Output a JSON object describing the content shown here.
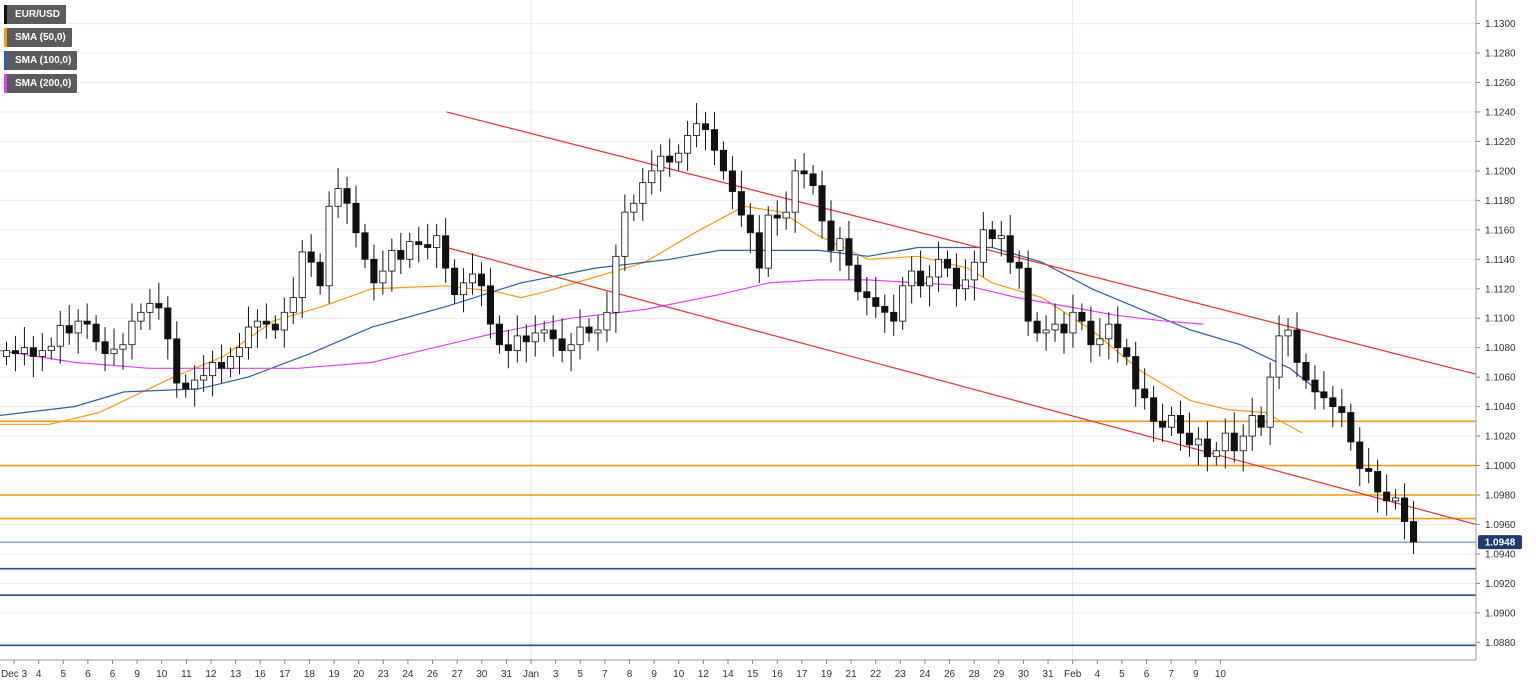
{
  "chart_data": {
    "type": "candlestick",
    "title": "",
    "symbol": "EUR/USD",
    "legend": [
      {
        "name": "EUR/USD",
        "color": "#111111"
      },
      {
        "name": "SMA (50,0)",
        "color": "#f39c12"
      },
      {
        "name": "SMA (100,0)",
        "color": "#2e5fa8"
      },
      {
        "name": "SMA (200,0)",
        "color": "#e040fb"
      }
    ],
    "legend_placement": "top-left",
    "grid": true,
    "ylim": [
      1.0868,
      1.1316
    ],
    "y_ticks": [
      "1.1300",
      "1.1280",
      "1.1260",
      "1.1240",
      "1.1220",
      "1.1200",
      "1.1180",
      "1.1160",
      "1.1140",
      "1.1120",
      "1.1100",
      "1.1080",
      "1.1060",
      "1.1040",
      "1.1020",
      "1.1000",
      "1.0980",
      "1.0960",
      "1.0940",
      "1.0920",
      "1.0900",
      "1.0880"
    ],
    "x_ticks": [
      "Dec 3",
      "4",
      "5",
      "6",
      "6",
      "9",
      "10",
      "11",
      "12",
      "13",
      "16",
      "17",
      "18",
      "19",
      "20",
      "23",
      "24",
      "26",
      "27",
      "30",
      "31",
      "Jan",
      "3",
      "5",
      "7",
      "8",
      "9",
      "10",
      "12",
      "14",
      "15",
      "16",
      "17",
      "19",
      "21",
      "22",
      "23",
      "24",
      "26",
      "28",
      "29",
      "30",
      "31",
      "Feb",
      "4",
      "5",
      "6",
      "7",
      "9",
      "10"
    ],
    "x_range": [
      0,
      119
    ],
    "current_price": "1.0948",
    "candles_close": [
      1.1078,
      1.1076,
      1.108,
      1.1074,
      1.1078,
      1.1081,
      1.1095,
      1.109,
      1.1098,
      1.1096,
      1.1084,
      1.1076,
      1.1079,
      1.1082,
      1.1098,
      1.1104,
      1.111,
      1.1107,
      1.1086,
      1.1056,
      1.1052,
      1.1058,
      1.1061,
      1.107,
      1.1066,
      1.1074,
      1.108,
      1.1094,
      1.1098,
      1.1096,
      1.1092,
      1.1104,
      1.1114,
      1.1145,
      1.1138,
      1.1122,
      1.1176,
      1.1188,
      1.1178,
      1.1158,
      1.114,
      1.1124,
      1.1132,
      1.1146,
      1.114,
      1.1152,
      1.115,
      1.1148,
      1.1156,
      1.1134,
      1.1116,
      1.1124,
      1.113,
      1.1122,
      1.1096,
      1.1082,
      1.1078,
      1.1088,
      1.1084,
      1.109,
      1.1092,
      1.1086,
      1.1078,
      1.1082,
      1.1094,
      1.109,
      1.1092,
      1.1104,
      1.1142,
      1.1172,
      1.1178,
      1.1192,
      1.12,
      1.121,
      1.1206,
      1.1212,
      1.1224,
      1.1232,
      1.1228,
      1.1214,
      1.12,
      1.1186,
      1.117,
      1.1158,
      1.1134,
      1.117,
      1.1168,
      1.1172,
      1.12,
      1.1198,
      1.119,
      1.1166,
      1.1146,
      1.1154,
      1.1136,
      1.1118,
      1.1114,
      1.1108,
      1.1104,
      1.1098,
      1.1122,
      1.1132,
      1.1122,
      1.1128,
      1.114,
      1.1134,
      1.112,
      1.1126,
      1.1138,
      1.116,
      1.1154,
      1.1156,
      1.1138,
      1.1134,
      1.1098,
      1.109,
      1.1092,
      1.1096,
      1.109,
      1.1104,
      1.1098,
      1.1082,
      1.1086,
      1.1096,
      1.108,
      1.1074,
      1.1052,
      1.1046,
      1.103,
      1.1026,
      1.1034,
      1.1022,
      1.1014,
      1.1018,
      1.1006,
      1.101,
      1.1022,
      1.101,
      1.102,
      1.1034,
      1.1026,
      1.106,
      1.1088,
      1.1092,
      1.107,
      1.1058,
      1.105,
      1.1046,
      1.104,
      1.1036,
      1.1016,
      1.0998,
      1.0996,
      1.0982,
      1.0976,
      1.0978,
      1.0962,
      1.0948
    ],
    "sma50": [
      [
        0,
        1.1028
      ],
      [
        4,
        1.1028
      ],
      [
        8,
        1.1036
      ],
      [
        11,
        1.1048
      ],
      [
        14,
        1.106
      ],
      [
        18,
        1.1074
      ],
      [
        22,
        1.1098
      ],
      [
        26,
        1.1108
      ],
      [
        30,
        1.112
      ],
      [
        36,
        1.1122
      ],
      [
        40,
        1.1118
      ],
      [
        42,
        1.1114
      ],
      [
        44,
        1.1118
      ],
      [
        48,
        1.1128
      ],
      [
        52,
        1.1138
      ],
      [
        56,
        1.1158
      ],
      [
        60,
        1.1176
      ],
      [
        63,
        1.1172
      ],
      [
        66,
        1.1156
      ],
      [
        70,
        1.114
      ],
      [
        74,
        1.1142
      ],
      [
        78,
        1.1134
      ],
      [
        80,
        1.1124
      ],
      [
        84,
        1.1114
      ],
      [
        88,
        1.1092
      ],
      [
        92,
        1.1064
      ],
      [
        96,
        1.1044
      ],
      [
        99,
        1.1038
      ],
      [
        102,
        1.1036
      ],
      [
        105,
        1.1022
      ]
    ],
    "sma100": [
      [
        0,
        1.1034
      ],
      [
        6,
        1.104
      ],
      [
        10,
        1.105
      ],
      [
        16,
        1.1052
      ],
      [
        20,
        1.106
      ],
      [
        25,
        1.1076
      ],
      [
        30,
        1.1094
      ],
      [
        36,
        1.1108
      ],
      [
        42,
        1.1124
      ],
      [
        48,
        1.1134
      ],
      [
        54,
        1.114
      ],
      [
        58,
        1.1146
      ],
      [
        62,
        1.1146
      ],
      [
        66,
        1.1146
      ],
      [
        70,
        1.1142
      ],
      [
        74,
        1.1148
      ],
      [
        80,
        1.1148
      ],
      [
        84,
        1.1138
      ],
      [
        88,
        1.112
      ],
      [
        92,
        1.1106
      ],
      [
        96,
        1.1092
      ],
      [
        100,
        1.1082
      ],
      [
        104,
        1.1066
      ],
      [
        107,
        1.1046
      ]
    ],
    "sma200": [
      [
        0,
        1.1078
      ],
      [
        6,
        1.107
      ],
      [
        12,
        1.1066
      ],
      [
        18,
        1.1066
      ],
      [
        24,
        1.1066
      ],
      [
        30,
        1.107
      ],
      [
        34,
        1.1078
      ],
      [
        40,
        1.109
      ],
      [
        46,
        1.11
      ],
      [
        52,
        1.1106
      ],
      [
        58,
        1.1116
      ],
      [
        62,
        1.1124
      ],
      [
        66,
        1.1126
      ],
      [
        70,
        1.1126
      ],
      [
        74,
        1.1124
      ],
      [
        78,
        1.1122
      ],
      [
        82,
        1.1114
      ],
      [
        86,
        1.1108
      ],
      [
        90,
        1.1102
      ],
      [
        94,
        1.1098
      ],
      [
        97,
        1.1096
      ]
    ],
    "trendlines": [
      {
        "from": [
          36,
          1.124
        ],
        "to": [
          119,
          1.1062
        ],
        "color": "#e8302a"
      },
      {
        "from": [
          36,
          1.1148
        ],
        "to": [
          119,
          1.096
        ],
        "color": "#e8302a"
      }
    ],
    "horizontal_levels": [
      {
        "y": 1.103,
        "color": "#f39c12"
      },
      {
        "y": 1.1,
        "color": "#f39c12"
      },
      {
        "y": 1.098,
        "color": "#f39c12"
      },
      {
        "y": 1.0964,
        "color": "#f39c12"
      },
      {
        "y": 1.093,
        "color": "#1f4e9a"
      },
      {
        "y": 1.0912,
        "color": "#1f4e9a"
      },
      {
        "y": 1.0878,
        "color": "#1f4e9a"
      }
    ],
    "current_price_line": {
      "y": 1.0948,
      "color": "#1f4e9a"
    }
  }
}
